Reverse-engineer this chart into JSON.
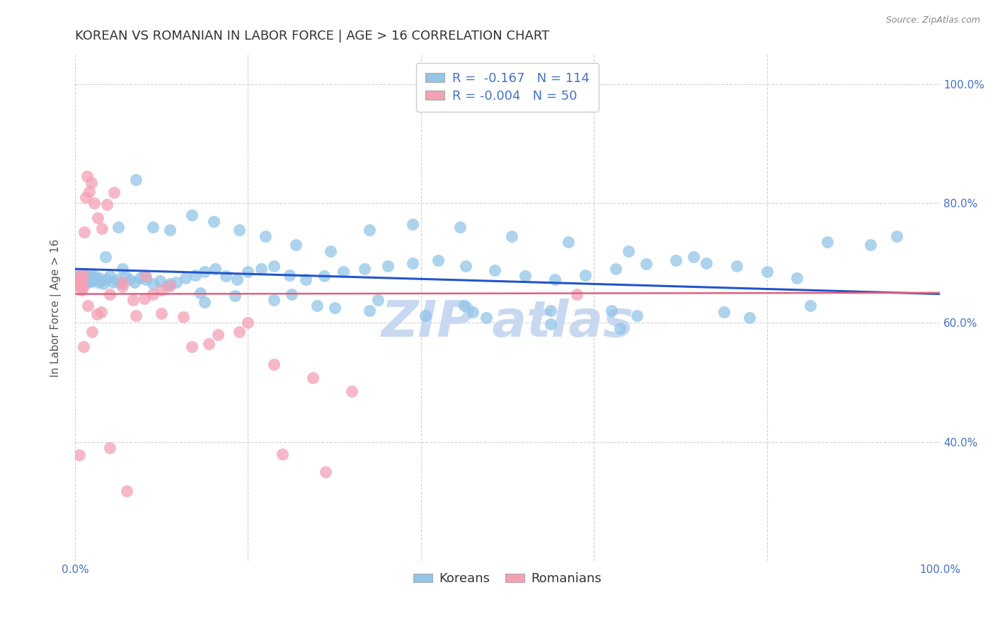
{
  "title": "KOREAN VS ROMANIAN IN LABOR FORCE | AGE > 16 CORRELATION CHART",
  "source": "Source: ZipAtlas.com",
  "ylabel": "In Labor Force | Age > 16",
  "x_min": 0.0,
  "x_max": 1.0,
  "y_min": 0.2,
  "y_max": 1.05,
  "y_ticks": [
    0.4,
    0.6,
    0.8,
    1.0
  ],
  "y_tick_labels": [
    "40.0%",
    "60.0%",
    "80.0%",
    "100.0%"
  ],
  "korean_color": "#92C5E8",
  "romanian_color": "#F4A0B5",
  "korean_line_color": "#2255CC",
  "romanian_line_color": "#E06080",
  "watermark_color": "#C8D8F0",
  "legend_korean_label": "Koreans",
  "legend_romanian_label": "Romanians",
  "korean_R": -0.167,
  "korean_N": 114,
  "romanian_R": -0.004,
  "romanian_N": 50,
  "korean_scatter_x": [
    0.002,
    0.003,
    0.004,
    0.005,
    0.006,
    0.007,
    0.008,
    0.009,
    0.01,
    0.011,
    0.012,
    0.013,
    0.014,
    0.015,
    0.016,
    0.017,
    0.018,
    0.019,
    0.02,
    0.021,
    0.022,
    0.024,
    0.026,
    0.028,
    0.03,
    0.033,
    0.036,
    0.04,
    0.044,
    0.048,
    0.053,
    0.058,
    0.063,
    0.069,
    0.075,
    0.082,
    0.09,
    0.098,
    0.107,
    0.117,
    0.128,
    0.139,
    0.15,
    0.162,
    0.174,
    0.187,
    0.2,
    0.215,
    0.23,
    0.248,
    0.267,
    0.288,
    0.31,
    0.335,
    0.362,
    0.39,
    0.42,
    0.452,
    0.485,
    0.52,
    0.555,
    0.59,
    0.625,
    0.66,
    0.695,
    0.73,
    0.765,
    0.8,
    0.835,
    0.87,
    0.05,
    0.07,
    0.09,
    0.11,
    0.135,
    0.16,
    0.19,
    0.22,
    0.255,
    0.295,
    0.34,
    0.39,
    0.445,
    0.505,
    0.57,
    0.64,
    0.715,
    0.035,
    0.055,
    0.08,
    0.11,
    0.145,
    0.185,
    0.23,
    0.28,
    0.34,
    0.405,
    0.475,
    0.55,
    0.63,
    0.25,
    0.35,
    0.45,
    0.55,
    0.65,
    0.75,
    0.85,
    0.95,
    0.15,
    0.3,
    0.46,
    0.62,
    0.92,
    0.78
  ],
  "korean_scatter_y": [
    0.68,
    0.675,
    0.67,
    0.678,
    0.672,
    0.668,
    0.675,
    0.67,
    0.665,
    0.68,
    0.672,
    0.678,
    0.67,
    0.675,
    0.668,
    0.672,
    0.678,
    0.67,
    0.675,
    0.672,
    0.678,
    0.672,
    0.668,
    0.675,
    0.67,
    0.665,
    0.672,
    0.678,
    0.668,
    0.672,
    0.665,
    0.678,
    0.672,
    0.668,
    0.675,
    0.672,
    0.665,
    0.67,
    0.662,
    0.668,
    0.675,
    0.68,
    0.685,
    0.69,
    0.678,
    0.672,
    0.685,
    0.69,
    0.695,
    0.68,
    0.672,
    0.678,
    0.685,
    0.69,
    0.695,
    0.7,
    0.705,
    0.695,
    0.688,
    0.678,
    0.672,
    0.68,
    0.69,
    0.698,
    0.705,
    0.7,
    0.695,
    0.685,
    0.675,
    0.735,
    0.76,
    0.84,
    0.76,
    0.755,
    0.78,
    0.77,
    0.755,
    0.745,
    0.73,
    0.72,
    0.755,
    0.765,
    0.76,
    0.745,
    0.735,
    0.72,
    0.71,
    0.71,
    0.69,
    0.68,
    0.665,
    0.65,
    0.645,
    0.638,
    0.628,
    0.62,
    0.612,
    0.608,
    0.598,
    0.59,
    0.648,
    0.638,
    0.628,
    0.62,
    0.612,
    0.618,
    0.628,
    0.745,
    0.635,
    0.625,
    0.618,
    0.62,
    0.73,
    0.608
  ],
  "romanian_scatter_x": [
    0.002,
    0.003,
    0.004,
    0.005,
    0.006,
    0.007,
    0.008,
    0.009,
    0.01,
    0.011,
    0.012,
    0.014,
    0.016,
    0.019,
    0.022,
    0.026,
    0.031,
    0.037,
    0.045,
    0.055,
    0.067,
    0.082,
    0.1,
    0.125,
    0.155,
    0.19,
    0.23,
    0.275,
    0.32,
    0.01,
    0.02,
    0.03,
    0.04,
    0.055,
    0.07,
    0.09,
    0.11,
    0.135,
    0.165,
    0.2,
    0.24,
    0.29,
    0.015,
    0.025,
    0.04,
    0.06,
    0.08,
    0.1,
    0.58,
    0.005
  ],
  "romanian_scatter_y": [
    0.672,
    0.665,
    0.678,
    0.66,
    0.67,
    0.655,
    0.668,
    0.658,
    0.68,
    0.752,
    0.81,
    0.845,
    0.82,
    0.835,
    0.8,
    0.775,
    0.758,
    0.798,
    0.818,
    0.66,
    0.638,
    0.678,
    0.655,
    0.61,
    0.565,
    0.585,
    0.53,
    0.508,
    0.485,
    0.56,
    0.585,
    0.618,
    0.648,
    0.668,
    0.612,
    0.648,
    0.662,
    0.56,
    0.58,
    0.6,
    0.38,
    0.35,
    0.628,
    0.614,
    0.39,
    0.318,
    0.64,
    0.616,
    0.648,
    0.378
  ],
  "korean_trend_y_start": 0.69,
  "korean_trend_y_end": 0.648,
  "romanian_trend_y_start": 0.648,
  "romanian_trend_y_end": 0.65,
  "background_color": "#FFFFFF",
  "grid_color": "#CCCCCC",
  "title_color": "#333333",
  "axis_color": "#4472C4",
  "title_fontsize": 13,
  "axis_label_fontsize": 11,
  "tick_fontsize": 11,
  "legend_fontsize": 13
}
